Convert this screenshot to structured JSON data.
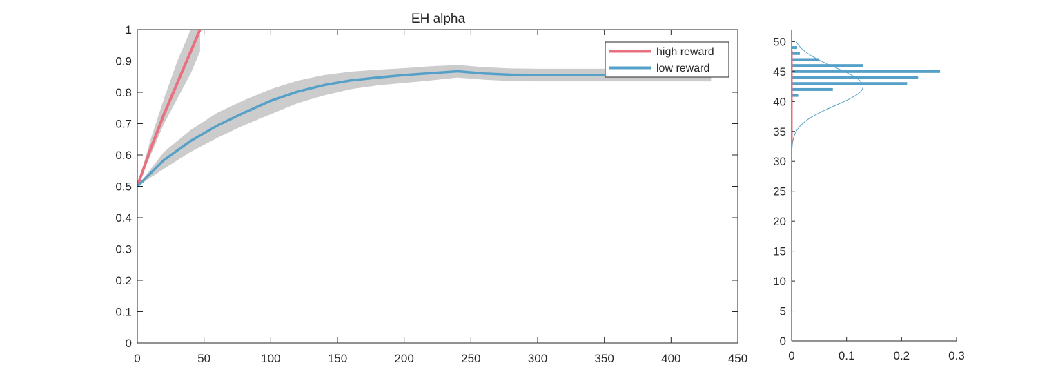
{
  "chart_data": [
    {
      "type": "line",
      "title": "EH  alpha",
      "xlabel": "",
      "ylabel": "",
      "xlim": [
        0,
        450
      ],
      "ylim": [
        0,
        1
      ],
      "xticks": [
        "0",
        "50",
        "100",
        "150",
        "200",
        "250",
        "300",
        "350",
        "400",
        "450"
      ],
      "yticks": [
        "0",
        "0.1",
        "0.2",
        "0.3",
        "0.4",
        "0.5",
        "0.6",
        "0.7",
        "0.8",
        "0.9",
        "1"
      ],
      "grid": false,
      "legend_position": "top-right",
      "series": [
        {
          "name": "high reward",
          "color": "#E8707F",
          "x": [
            0,
            10,
            20,
            30,
            40,
            47
          ],
          "y": [
            0.5,
            0.62,
            0.73,
            0.83,
            0.93,
            1.0
          ],
          "band_lower": [
            0.5,
            0.6,
            0.7,
            0.78,
            0.86,
            0.93
          ],
          "band_upper": [
            0.5,
            0.65,
            0.78,
            0.9,
            1.0,
            1.0
          ],
          "band_color": "#cccccc"
        },
        {
          "name": "low reward",
          "color": "#55A0C8",
          "x": [
            0,
            20,
            40,
            60,
            80,
            100,
            120,
            140,
            160,
            180,
            200,
            220,
            240,
            260,
            280,
            300,
            320,
            340,
            360,
            380,
            400,
            430
          ],
          "y": [
            0.5,
            0.584,
            0.645,
            0.694,
            0.735,
            0.773,
            0.802,
            0.823,
            0.838,
            0.847,
            0.855,
            0.861,
            0.867,
            0.86,
            0.856,
            0.855,
            0.855,
            0.855,
            0.855,
            0.855,
            0.855,
            0.855
          ],
          "band_lower": [
            0.5,
            0.556,
            0.61,
            0.655,
            0.695,
            0.73,
            0.765,
            0.79,
            0.81,
            0.822,
            0.83,
            0.838,
            0.847,
            0.84,
            0.836,
            0.835,
            0.835,
            0.835,
            0.835,
            0.835,
            0.835,
            0.835
          ],
          "band_upper": [
            0.5,
            0.61,
            0.68,
            0.735,
            0.775,
            0.81,
            0.837,
            0.855,
            0.866,
            0.872,
            0.877,
            0.883,
            0.887,
            0.88,
            0.876,
            0.875,
            0.875,
            0.875,
            0.875,
            0.875,
            0.875,
            0.875
          ],
          "band_color": "#cccccc"
        }
      ]
    },
    {
      "type": "bar",
      "orientation": "horizontal",
      "title": "",
      "xlim": [
        0,
        0.3
      ],
      "ylim": [
        0,
        52
      ],
      "xticks": [
        "0",
        "0.1",
        "0.2",
        "0.3"
      ],
      "yticks": [
        "0",
        "5",
        "10",
        "15",
        "20",
        "25",
        "30",
        "35",
        "40",
        "45",
        "50"
      ],
      "grid": false,
      "bar_color": "#55A0C8",
      "bars": [
        {
          "y": 41,
          "value": 0.012
        },
        {
          "y": 42,
          "value": 0.075
        },
        {
          "y": 43,
          "value": 0.21
        },
        {
          "y": 44,
          "value": 0.23
        },
        {
          "y": 45,
          "value": 0.27
        },
        {
          "y": 46,
          "value": 0.13
        },
        {
          "y": 47,
          "value": 0.05
        },
        {
          "y": 48,
          "value": 0.015
        },
        {
          "y": 49,
          "value": 0.01
        }
      ],
      "fit_curve": {
        "type": "normal",
        "mean": 42.5,
        "sd": 3.2,
        "color": "#55A0C8"
      },
      "marker_line": {
        "color": "#E8707F",
        "y_range": [
          33,
          48.5
        ],
        "x": 0
      }
    }
  ]
}
